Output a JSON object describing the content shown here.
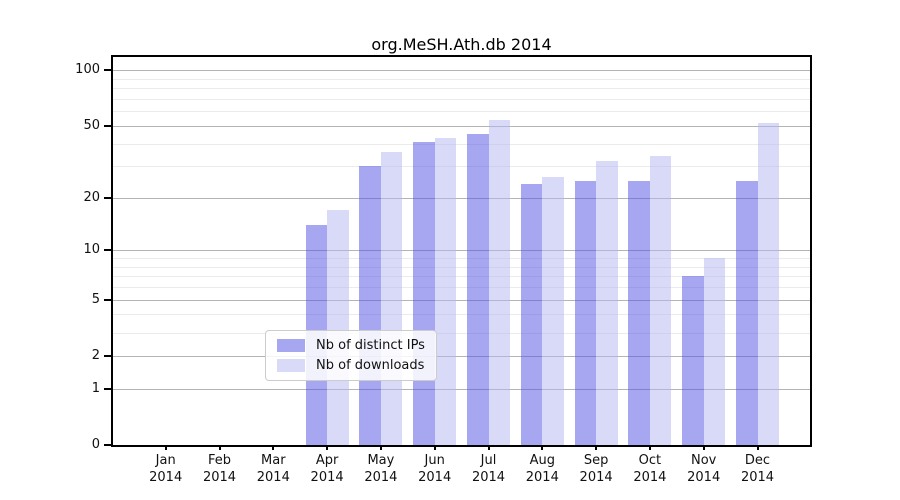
{
  "chart_data": {
    "type": "bar",
    "title": "org.MeSH.Ath.db 2014",
    "scale": "log1p",
    "categories": [
      "Jan",
      "Feb",
      "Mar",
      "Apr",
      "May",
      "Jun",
      "Jul",
      "Aug",
      "Sep",
      "Oct",
      "Nov",
      "Dec"
    ],
    "year": "2014",
    "series": [
      {
        "name": "Nb of distinct IPs",
        "color": "rgba(77,77,228,0.5)",
        "values": [
          0,
          0,
          0,
          14,
          30,
          41,
          45,
          24,
          25,
          25,
          7,
          25
        ]
      },
      {
        "name": "Nb of downloads",
        "color": "rgba(180,180,242,0.5)",
        "values": [
          0,
          0,
          0,
          17,
          36,
          43,
          54,
          26,
          32,
          34,
          9,
          52
        ]
      }
    ],
    "yticks": [
      0,
      1,
      2,
      5,
      10,
      20,
      50,
      100
    ],
    "minor_gridlines": [
      3,
      4,
      6,
      7,
      8,
      9,
      30,
      40,
      60,
      70,
      80,
      90
    ],
    "ylim": [
      0,
      118
    ],
    "legend_position": "lower center",
    "grid": true
  }
}
